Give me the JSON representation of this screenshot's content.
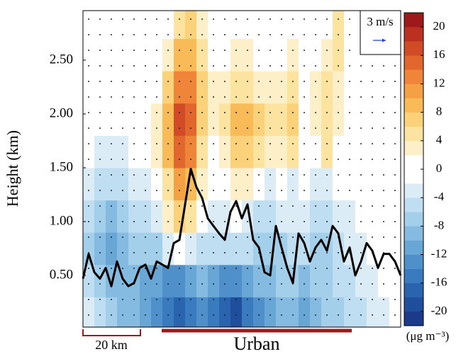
{
  "chart_data": {
    "type": "contour",
    "y_label": "Height (km)",
    "ylim": [
      0.02,
      2.96
    ],
    "yticks": [
      {
        "value": 0.5,
        "label": "0.50"
      },
      {
        "value": 1.0,
        "label": "1.00"
      },
      {
        "value": 1.5,
        "label": "1.50"
      },
      {
        "value": 2.0,
        "label": "2.00"
      },
      {
        "value": 2.5,
        "label": "2.50"
      }
    ],
    "field": {
      "heights": [
        0.15,
        0.45,
        0.75,
        1.05,
        1.35,
        1.65,
        1.95,
        2.25,
        2.55,
        2.85
      ],
      "values": [
        [
          -2,
          -4,
          -6,
          -8,
          -8,
          -10,
          -12,
          -14,
          -16,
          -14,
          -12,
          -14,
          -16,
          -18,
          -14,
          -12,
          -10,
          -8,
          -8,
          -10,
          -8,
          -6,
          -6,
          -4,
          -4,
          -2,
          -2,
          0
        ],
        [
          -4,
          -6,
          -8,
          -8,
          -8,
          -10,
          -10,
          -12,
          -12,
          -10,
          -8,
          -10,
          -12,
          -12,
          -10,
          -8,
          -8,
          -6,
          -6,
          -8,
          -6,
          -6,
          -4,
          -4,
          -2,
          -2,
          0,
          0
        ],
        [
          -6,
          -8,
          -10,
          -8,
          -6,
          -6,
          -6,
          -2,
          0,
          -2,
          -4,
          -4,
          -4,
          -4,
          -4,
          -6,
          -6,
          -6,
          -4,
          -4,
          -6,
          -6,
          -4,
          -2,
          -2,
          0,
          0,
          0
        ],
        [
          -4,
          -6,
          -8,
          -6,
          -4,
          -4,
          -2,
          2,
          6,
          4,
          0,
          -2,
          -2,
          0,
          -2,
          -4,
          -4,
          -2,
          -2,
          -2,
          -4,
          -4,
          -2,
          -2,
          0,
          0,
          0,
          0
        ],
        [
          -2,
          -4,
          -4,
          -4,
          -2,
          -2,
          0,
          4,
          10,
          8,
          2,
          0,
          0,
          2,
          2,
          0,
          -2,
          0,
          -2,
          0,
          -2,
          -2,
          0,
          0,
          0,
          0,
          0,
          0
        ],
        [
          0,
          -2,
          -2,
          -2,
          0,
          0,
          2,
          8,
          14,
          12,
          4,
          0,
          2,
          6,
          6,
          4,
          2,
          2,
          4,
          0,
          0,
          4,
          0,
          0,
          0,
          0,
          0,
          0
        ],
        [
          0,
          0,
          0,
          0,
          0,
          0,
          2,
          8,
          16,
          14,
          6,
          2,
          4,
          8,
          8,
          6,
          4,
          4,
          6,
          0,
          2,
          4,
          2,
          0,
          0,
          0,
          0,
          0
        ],
        [
          0,
          0,
          0,
          0,
          0,
          0,
          0,
          6,
          12,
          12,
          6,
          2,
          2,
          4,
          4,
          2,
          2,
          2,
          4,
          0,
          2,
          4,
          2,
          0,
          0,
          0,
          0,
          0
        ],
        [
          0,
          0,
          0,
          0,
          0,
          0,
          0,
          2,
          8,
          8,
          4,
          0,
          0,
          2,
          2,
          0,
          0,
          0,
          2,
          0,
          0,
          2,
          4,
          0,
          0,
          0,
          0,
          0
        ],
        [
          0,
          0,
          0,
          0,
          0,
          0,
          0,
          0,
          4,
          6,
          2,
          0,
          0,
          0,
          0,
          0,
          0,
          0,
          0,
          0,
          0,
          0,
          4,
          0,
          0,
          0,
          0,
          0
        ]
      ]
    },
    "boundary_layer": {
      "color": "#000000",
      "values": [
        0.47,
        0.7,
        0.53,
        0.47,
        0.57,
        0.4,
        0.63,
        0.47,
        0.4,
        0.43,
        0.57,
        0.6,
        0.47,
        0.63,
        0.6,
        0.57,
        0.8,
        0.83,
        1.16,
        1.49,
        1.32,
        1.22,
        1.03,
        0.96,
        0.89,
        0.83,
        1.09,
        1.19,
        1.03,
        1.16,
        0.83,
        0.76,
        0.53,
        0.5,
        0.96,
        0.76,
        0.57,
        0.43,
        0.89,
        0.8,
        0.63,
        0.76,
        0.83,
        0.73,
        0.96,
        0.89,
        0.63,
        0.76,
        0.5,
        0.63,
        0.8,
        0.73,
        0.57,
        0.7,
        0.7,
        0.63,
        0.5
      ]
    },
    "colorbar": {
      "levels": [
        -22,
        -20,
        -18,
        -16,
        -14,
        -12,
        -10,
        -8,
        -6,
        -4,
        -2,
        0,
        2,
        4,
        6,
        8,
        10,
        12,
        14,
        16,
        18,
        20,
        22
      ],
      "colors": [
        "#1b3a8a",
        "#1f4e9c",
        "#2a64ae",
        "#3a7bbf",
        "#4f90cb",
        "#68a6d6",
        "#85bbe0",
        "#a3cfea",
        "#c0def2",
        "#dcecf7",
        "#ffffff",
        "#ffffff",
        "#fdf0c8",
        "#fce3a0",
        "#fbd27a",
        "#f8bb58",
        "#f4a145",
        "#ee8538",
        "#e2672e",
        "#d14b26",
        "#bb3020",
        "#9e1a1a"
      ],
      "ticks": [
        20,
        16,
        12,
        8,
        4,
        0,
        -4,
        -8,
        -12,
        -16,
        -20
      ],
      "unit": "(μg m⁻³)"
    },
    "wind_scale_label": "3 m/s",
    "scale_bar_label": "20 km",
    "urban_label": "Urban"
  }
}
